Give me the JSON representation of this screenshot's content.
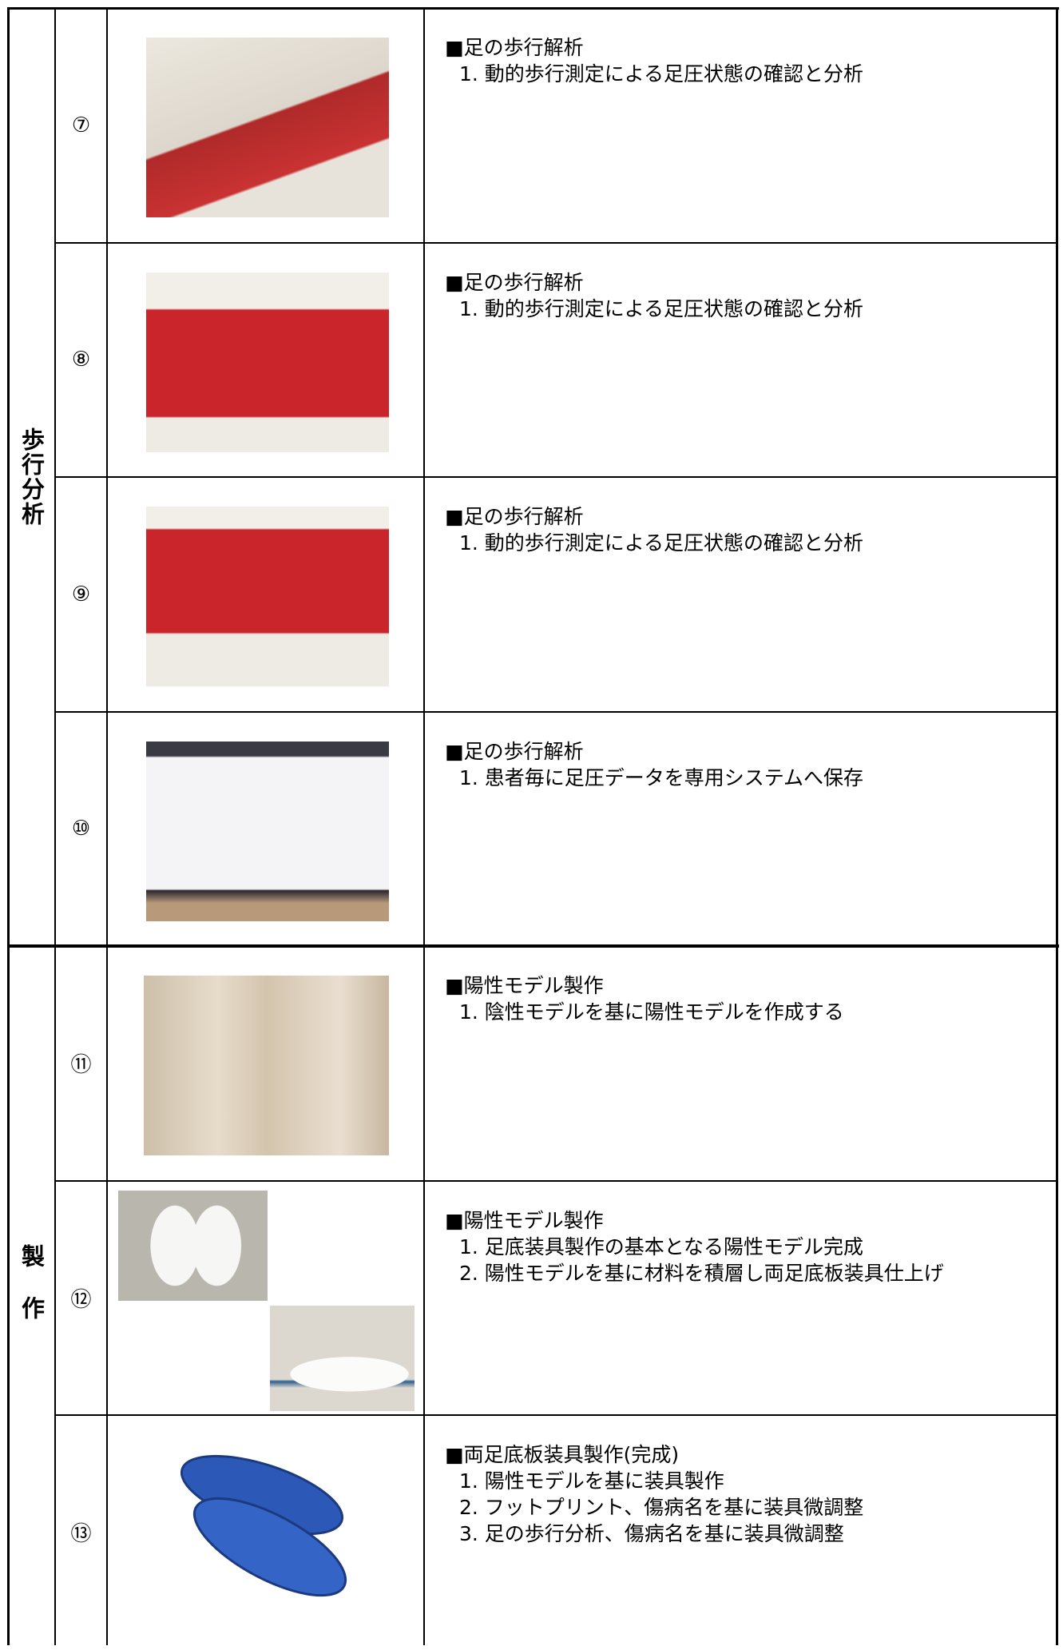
{
  "groups": [
    {
      "label": "歩行分析",
      "rows": [
        {
          "number": "⑦",
          "heading": "■足の歩行解析",
          "items": [
            "1. 動的歩行測定による足圧状態の確認と分析"
          ]
        },
        {
          "number": "⑧",
          "heading": "■足の歩行解析",
          "items": [
            "1. 動的歩行測定による足圧状態の確認と分析"
          ]
        },
        {
          "number": "⑨",
          "heading": "■足の歩行解析",
          "items": [
            "1. 動的歩行測定による足圧状態の確認と分析"
          ]
        },
        {
          "number": "⑩",
          "heading": "■足の歩行解析",
          "items": [
            "1. 患者毎に足圧データを専用システムへ保存"
          ]
        }
      ]
    },
    {
      "label": "製作",
      "rows": [
        {
          "number": "⑪",
          "heading": "■陽性モデル製作",
          "items": [
            "1. 陰性モデルを基に陽性モデルを作成する"
          ]
        },
        {
          "number": "⑫",
          "heading": "■陽性モデル製作",
          "items": [
            "1. 足底装具製作の基本となる陽性モデル完成",
            "2. 陽性モデルを基に材料を積層し両足底板装具仕上げ"
          ]
        },
        {
          "number": "⑬",
          "heading": "■両足底板装具製作(完成)",
          "items": [
            "1. 陽性モデルを基に装具製作",
            "2. フットプリント、傷病名を基に装具微調整",
            "3. 足の歩行分析、傷病名を基に装具微調整"
          ]
        }
      ]
    }
  ]
}
